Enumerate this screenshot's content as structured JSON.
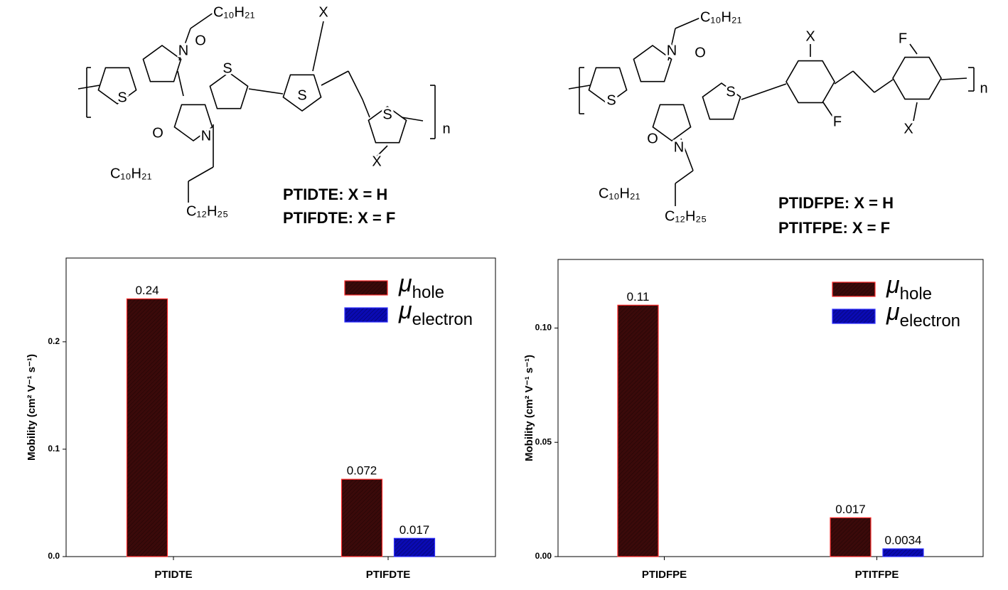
{
  "structures": [
    {
      "atoms": [
        "C₁₀H₂₁",
        "N",
        "O",
        "S",
        "S",
        "S",
        "S",
        "O",
        "N",
        "X",
        "X",
        "n",
        "C₁₀H₂₁",
        "C₁₂H₂₅"
      ],
      "labels": [
        "PTIDTE: X = H",
        "PTIFDTE: X = F"
      ]
    },
    {
      "atoms": [
        "C₁₀H₂₁",
        "N",
        "O",
        "S",
        "S",
        "O",
        "N",
        "X",
        "F",
        "F",
        "X",
        "n",
        "C₁₀H₂₁",
        "C₁₂H₂₅"
      ],
      "labels": [
        "PTIDFPE: X = H",
        "PTITFPE: X = F"
      ]
    }
  ],
  "chart_data": [
    {
      "type": "bar",
      "y_label": "Mobility (cm² V⁻¹ s⁻¹)",
      "categories": [
        "PTIDTE",
        "PTIFDTE"
      ],
      "series": [
        {
          "name": "μhole",
          "color": "#3b0a0a",
          "edgecolor": "#ff2a2a",
          "values": [
            0.24,
            0.072
          ]
        },
        {
          "name": "μelectron",
          "color": "#0a0ab4",
          "edgecolor": "#3030ff",
          "values": [
            null,
            0.017
          ]
        }
      ],
      "ylim": [
        0,
        0.278
      ],
      "yticks": [
        {
          "value": 0,
          "label": "0.0"
        },
        {
          "value": 0.1,
          "label": "0.1"
        },
        {
          "value": 0.2,
          "label": "0.2"
        }
      ],
      "legend": "upper right"
    },
    {
      "type": "bar",
      "y_label": "Mobility (cm² V⁻¹ s⁻¹)",
      "categories": [
        "PTIDFPE",
        "PTITFPE"
      ],
      "series": [
        {
          "name": "μhole",
          "color": "#3b0a0a",
          "edgecolor": "#ff2a2a",
          "values": [
            0.11,
            0.017
          ]
        },
        {
          "name": "μelectron",
          "color": "#0a0ab4",
          "edgecolor": "#3030ff",
          "values": [
            null,
            0.0034
          ]
        }
      ],
      "ylim": [
        0,
        0.13
      ],
      "yticks": [
        {
          "value": 0,
          "label": "0.00"
        },
        {
          "value": 0.05,
          "label": "0.05"
        },
        {
          "value": 0.1,
          "label": "0.10"
        }
      ],
      "legend": "upper right"
    }
  ]
}
